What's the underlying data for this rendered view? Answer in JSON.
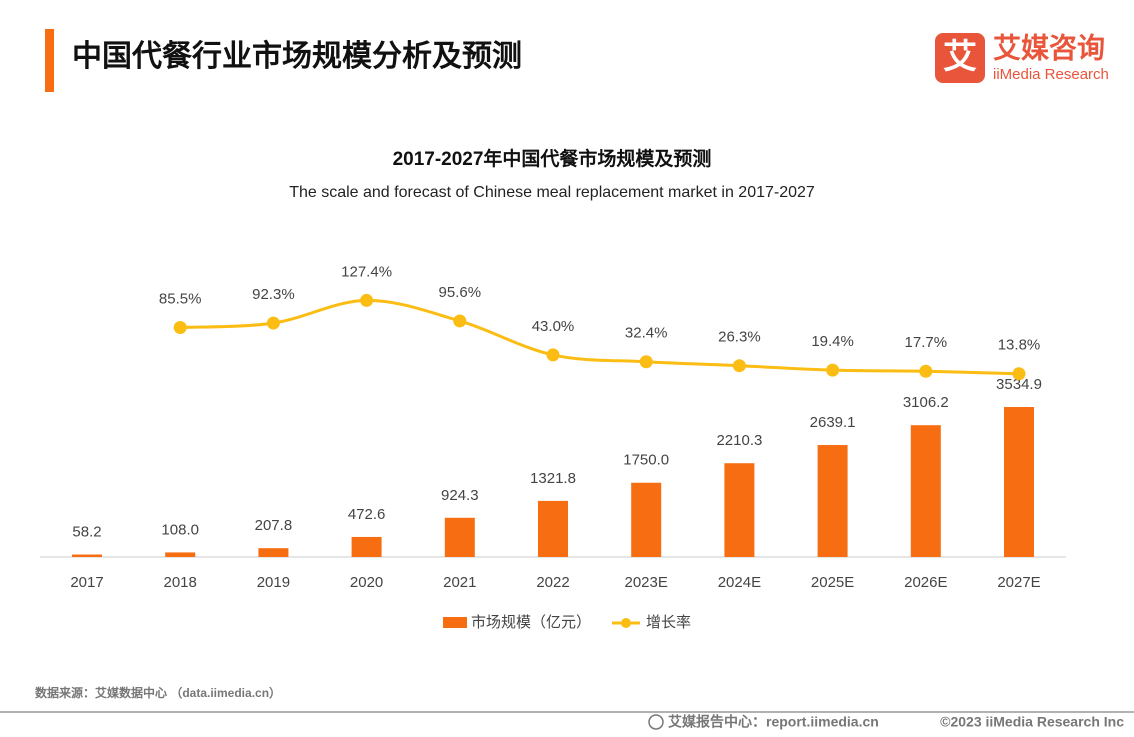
{
  "header": {
    "title": "中国代餐行业市场规模分析及预测",
    "logo": {
      "icon": "艾",
      "name": "艾媒咨询",
      "name_en": "iiMedia Research"
    }
  },
  "chart_data": {
    "type": "bar",
    "title": "2017-2027年中国代餐市场规模及预测",
    "subtitle": "The scale and forecast of Chinese meal replacement market in 2017-2027",
    "categories": [
      "2017",
      "2018",
      "2019",
      "2020",
      "2021",
      "2022",
      "2023E",
      "2024E",
      "2025E",
      "2026E",
      "2027E"
    ],
    "series": [
      {
        "name": "市场规模（亿元）",
        "color": "#f76d12",
        "values": [
          58.2,
          108.0,
          207.8,
          472.6,
          924.3,
          1321.8,
          1750.0,
          2210.3,
          2639.1,
          3106.2,
          3534.9
        ],
        "value_labels": [
          "58.2",
          "108.0",
          "207.8",
          "472.6",
          "924.3",
          "1321.8",
          "1750.0",
          "2210.3",
          "2639.1",
          "3106.2",
          "3534.9"
        ]
      },
      {
        "name": "增长率",
        "type": "line",
        "axis": "y2",
        "color": "#fbbd14",
        "values": [
          null,
          85.5,
          92.3,
          127.4,
          95.6,
          43.0,
          32.4,
          26.3,
          19.4,
          17.7,
          13.8
        ],
        "value_labels": [
          null,
          "85.5%",
          "92.3%",
          "127.4%",
          "95.6%",
          "43.0%",
          "32.4%",
          "26.3%",
          "19.4%",
          "17.7%",
          "13.8%"
        ]
      }
    ],
    "ylim": [
      0,
      7000
    ],
    "y2lim": [
      -270,
      190
    ]
  },
  "source": "数据来源：艾媒数据中心 （data.iimedia.cn）",
  "footer": {
    "text": "艾媒报告中心：report.iimedia.cn",
    "copyright": "©2023  iiMedia Research  Inc"
  }
}
